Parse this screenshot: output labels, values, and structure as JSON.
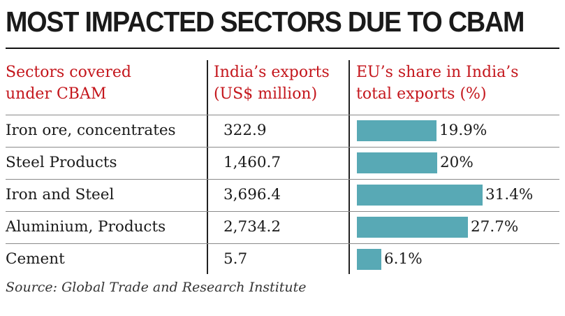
{
  "title": "MOST IMPACTED SECTORS DUE TO CBAM",
  "headers": {
    "sector": [
      "Sectors covered",
      "under CBAM"
    ],
    "exports": [
      "India’s exports",
      "(US$ million)"
    ],
    "share": [
      "EU’s share in India’s",
      "total exports (%)"
    ]
  },
  "source": "Source: Global Trade and Research Institute",
  "colors": {
    "bar": "#58a9b5",
    "header": "#c4161c"
  },
  "chart_data": {
    "type": "table",
    "title": "MOST IMPACTED SECTORS DUE TO CBAM",
    "columns": [
      "Sectors covered under CBAM",
      "India’s exports (US$ million)",
      "EU’s share in India’s total exports (%)"
    ],
    "categories": [
      "Iron ore, concentrates",
      "Steel Products",
      "Iron and Steel",
      "Aluminium, Products",
      "Cement"
    ],
    "exports_labels": [
      "322.9",
      "1,460.7",
      "3,696.4",
      "2,734.2",
      "5.7"
    ],
    "exports": [
      322.9,
      1460.7,
      3696.4,
      2734.2,
      5.7
    ],
    "eu_share": [
      19.9,
      20,
      31.4,
      27.7,
      6.1
    ],
    "eu_share_labels": [
      "19.9%",
      "20%",
      "31.4%",
      "27.7%",
      "6.1%"
    ],
    "share_xlim": [
      0,
      31.4
    ]
  }
}
